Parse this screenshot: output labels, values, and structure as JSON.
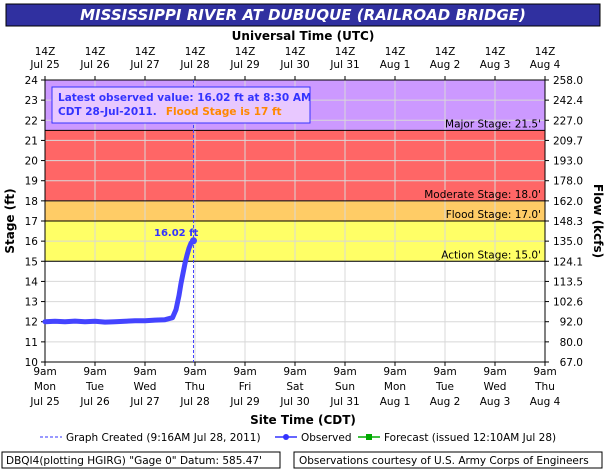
{
  "title": "MISSISSIPPI RIVER AT DUBUQUE (RAILROAD BRIDGE)",
  "top_axis_title": "Universal Time (UTC)",
  "bottom_axis_title": "Site Time (CDT)",
  "colors": {
    "title_bg": "#3030a0",
    "major": "#cc99ff",
    "moderate": "#ff6666",
    "flood": "#ffcc66",
    "action": "#ffff66",
    "observed": "#4444ff",
    "forecast": "#00aa00",
    "info_box": "#e8c8ff"
  },
  "info": {
    "line1": "Latest observed value: 16.02 ft at 8:30 AM",
    "line2a": "CDT 28-Jul-2011.",
    "line2b": "Flood Stage is 17 ft"
  },
  "peak_label": "16.02 ft",
  "legend": {
    "created": "Graph Created (9:16AM Jul 28, 2011)",
    "observed": "Observed",
    "forecast": "Forecast (issued 12:10AM Jul 28)"
  },
  "footer": {
    "left": "DBQI4(plotting HGIRG) \"Gage 0\" Datum: 585.47'",
    "right": "Observations courtesy of U.S. Army Corps of Engineers"
  },
  "chart_data": {
    "type": "line",
    "title": "MISSISSIPPI RIVER AT DUBUQUE (RAILROAD BRIDGE)",
    "ylabel": "Stage (ft)",
    "y2label": "Flow (kcfs)",
    "ylim": [
      10,
      24
    ],
    "yticks": [
      10,
      11,
      12,
      13,
      14,
      15,
      16,
      17,
      18,
      19,
      20,
      21,
      22,
      23,
      24
    ],
    "y2ticks": [
      "67.0",
      "80.0",
      "92.0",
      "102.6",
      "113.5",
      "124.1",
      "135.0",
      "148.3",
      "162.0",
      "178.0",
      "193.0",
      "209.7",
      "227.0",
      "242.4",
      "258.0"
    ],
    "top_ticks": [
      [
        "14Z",
        "Jul 25"
      ],
      [
        "14Z",
        "Jul 26"
      ],
      [
        "14Z",
        "Jul 27"
      ],
      [
        "14Z",
        "Jul 28"
      ],
      [
        "14Z",
        "Jul 29"
      ],
      [
        "14Z",
        "Jul 30"
      ],
      [
        "14Z",
        "Jul 31"
      ],
      [
        "14Z",
        "Aug 1"
      ],
      [
        "14Z",
        "Aug 2"
      ],
      [
        "14Z",
        "Aug 3"
      ],
      [
        "14Z",
        "Aug 4"
      ]
    ],
    "bottom_ticks": [
      [
        "9am",
        "Mon",
        "Jul 25"
      ],
      [
        "9am",
        "Tue",
        "Jul 26"
      ],
      [
        "9am",
        "Wed",
        "Jul 27"
      ],
      [
        "9am",
        "Thu",
        "Jul 28"
      ],
      [
        "9am",
        "Fri",
        "Jul 29"
      ],
      [
        "9am",
        "Sat",
        "Jul 30"
      ],
      [
        "9am",
        "Sun",
        "Jul 31"
      ],
      [
        "9am",
        "Mon",
        "Aug 1"
      ],
      [
        "9am",
        "Tue",
        "Aug 2"
      ],
      [
        "9am",
        "Wed",
        "Aug 3"
      ],
      [
        "9am",
        "Thu",
        "Aug 4"
      ]
    ],
    "x_unit": "days since Jul 25 9am CDT",
    "xlim": [
      0,
      10
    ],
    "stages": [
      {
        "name": "Major Stage: 21.5'",
        "value": 21.5,
        "top": 24
      },
      {
        "name": "Moderate Stage: 18.0'",
        "value": 18.0,
        "top": 21.5
      },
      {
        "name": "Flood Stage: 17.0'",
        "value": 17.0,
        "top": 18.0
      },
      {
        "name": "Action Stage: 15.0'",
        "value": 15.0,
        "top": 17.0
      }
    ],
    "graph_created_x": 2.97,
    "series": [
      {
        "name": "Observed",
        "x": [
          0.0,
          0.2,
          0.4,
          0.6,
          0.8,
          1.0,
          1.2,
          1.4,
          1.6,
          1.8,
          2.0,
          2.2,
          2.4,
          2.55,
          2.62,
          2.68,
          2.72,
          2.76,
          2.8,
          2.84,
          2.88,
          2.92,
          2.97
        ],
        "y": [
          12.0,
          12.02,
          12.0,
          12.03,
          12.0,
          12.02,
          11.98,
          12.0,
          12.02,
          12.05,
          12.05,
          12.08,
          12.1,
          12.2,
          12.6,
          13.3,
          13.9,
          14.4,
          14.9,
          15.3,
          15.65,
          15.9,
          16.02
        ]
      }
    ]
  }
}
